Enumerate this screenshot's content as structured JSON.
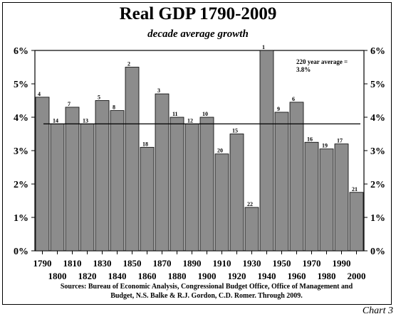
{
  "chart_data": {
    "type": "bar",
    "title": "Real GDP 1790-2009",
    "subtitle": "decade average growth",
    "categories": [
      "1790",
      "1800",
      "1810",
      "1820",
      "1830",
      "1840",
      "1850",
      "1860",
      "1870",
      "1880",
      "1890",
      "1900",
      "1910",
      "1920",
      "1930",
      "1940",
      "1950",
      "1960",
      "1970",
      "1980",
      "1990",
      "2000"
    ],
    "values": [
      4.6,
      3.8,
      4.3,
      3.8,
      4.5,
      4.2,
      5.5,
      3.1,
      4.7,
      4.0,
      3.8,
      4.0,
      2.9,
      3.5,
      1.3,
      6.0,
      4.15,
      4.45,
      3.25,
      3.05,
      3.2,
      1.75
    ],
    "rank_labels": [
      "4",
      "14",
      "7",
      "13",
      "5",
      "8",
      "2",
      "18",
      "3",
      "11",
      "12",
      "10",
      "20",
      "15",
      "22",
      "1",
      "9",
      "6",
      "16",
      "19",
      "17",
      "21"
    ],
    "ylim": [
      0,
      6
    ],
    "yticks": [
      "0%",
      "1%",
      "2%",
      "3%",
      "4%",
      "5%",
      "6%"
    ],
    "average": 3.8,
    "average_note": [
      "220 year average =",
      "3.8%"
    ],
    "bar_color": "#8c8c8c",
    "legend": "none",
    "grid": false
  },
  "source": [
    "Sources: Bureau of Economic Analysis, Congressional Budget Office, Office of Management and",
    "Budget,  N.S. Balke & R.J. Gordon, C.D. Romer. Through 2009."
  ],
  "caption": "Chart 3"
}
